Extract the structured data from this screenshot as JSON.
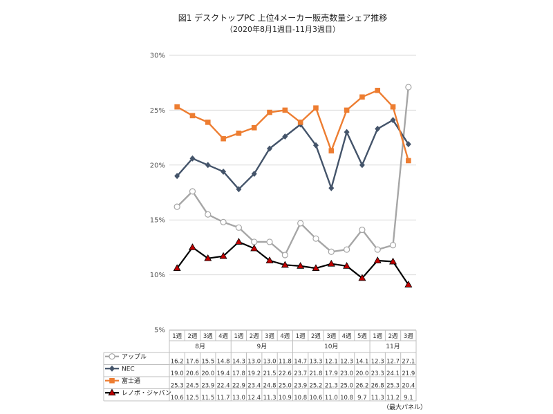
{
  "chart_data": {
    "type": "line",
    "title": "図1 デスクトップPC 上位4メーカー販売数量シェア推移",
    "subtitle": "（2020年8月1週目-11月3週目）",
    "ylim": [
      5,
      30
    ],
    "yticks": [
      "5%",
      "10%",
      "15%",
      "20%",
      "25%",
      "30%"
    ],
    "ytick_values": [
      5,
      10,
      15,
      20,
      25,
      30
    ],
    "grid": true,
    "categories": [
      "1週",
      "2週",
      "3週",
      "4週",
      "1週",
      "2週",
      "3週",
      "4週",
      "1週",
      "2週",
      "3週",
      "4週",
      "5週",
      "1週",
      "2週",
      "3週"
    ],
    "month_groups": [
      {
        "label": "8月",
        "start": 0,
        "end": 3
      },
      {
        "label": "9月",
        "start": 4,
        "end": 7
      },
      {
        "label": "10月",
        "start": 8,
        "end": 12
      },
      {
        "label": "11月",
        "start": 13,
        "end": 15
      }
    ],
    "series": [
      {
        "name": "アップル",
        "color": "#a6a6a6",
        "marker": "circle",
        "values": [
          16.2,
          17.6,
          15.5,
          14.8,
          14.3,
          13.0,
          13.0,
          11.8,
          14.7,
          13.3,
          12.1,
          12.3,
          14.1,
          12.3,
          12.7,
          27.1
        ]
      },
      {
        "name": "NEC",
        "color": "#44546a",
        "marker": "diamond",
        "values": [
          19.0,
          20.6,
          20.0,
          19.4,
          17.8,
          19.2,
          21.5,
          22.6,
          23.7,
          21.8,
          17.9,
          23.0,
          20.0,
          23.3,
          24.1,
          21.9
        ]
      },
      {
        "name": "富士通",
        "color": "#ed7d31",
        "marker": "square",
        "values": [
          25.3,
          24.5,
          23.9,
          22.4,
          22.9,
          23.4,
          24.8,
          25.0,
          23.9,
          25.2,
          21.3,
          25.0,
          26.2,
          26.8,
          25.3,
          20.4
        ]
      },
      {
        "name": "レノボ・ジャパン",
        "color": "#000000",
        "marker": "triangle",
        "values": [
          10.6,
          12.5,
          11.5,
          11.7,
          13.0,
          12.4,
          11.3,
          10.9,
          10.8,
          10.6,
          11.0,
          10.8,
          9.7,
          11.3,
          11.2,
          9.1
        ]
      }
    ],
    "note": "（最大パネル）"
  }
}
